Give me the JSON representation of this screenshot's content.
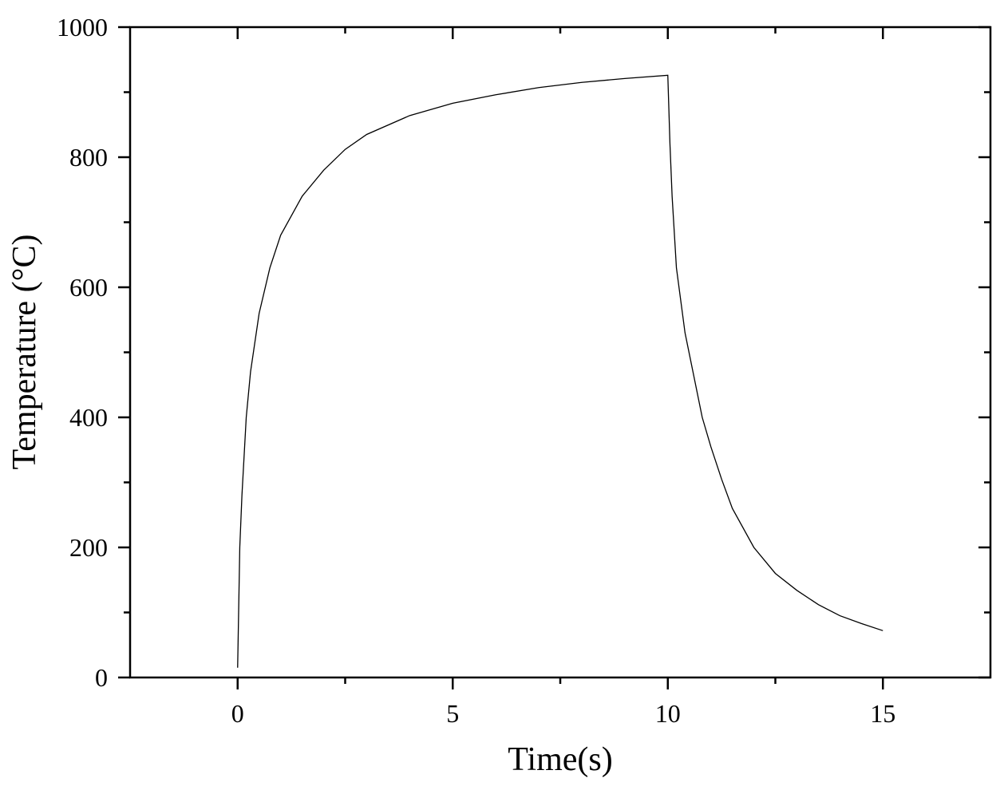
{
  "chart_data": {
    "type": "line",
    "x_label": "Time(s)",
    "y_label": "Temperature (°C)",
    "xlim": [
      -2.5,
      17.5
    ],
    "xticks": [
      0,
      5,
      10,
      15
    ],
    "ylim": [
      0,
      1000
    ],
    "yticks": [
      0,
      200,
      400,
      600,
      800,
      1000
    ],
    "grid": false,
    "color": "#000000",
    "x": [
      0,
      0.05,
      0.1,
      0.2,
      0.3,
      0.5,
      0.75,
      1,
      1.5,
      2,
      2.5,
      3,
      4,
      5,
      6,
      7,
      8,
      9,
      10,
      10.05,
      10.1,
      10.2,
      10.4,
      10.6,
      10.8,
      11,
      11.25,
      11.5,
      12,
      12.5,
      13,
      13.5,
      14,
      14.5,
      15
    ],
    "values": [
      15,
      200,
      280,
      400,
      470,
      560,
      630,
      680,
      740,
      780,
      812,
      835,
      864,
      883,
      896,
      907,
      915,
      921,
      926,
      820,
      740,
      630,
      530,
      465,
      400,
      355,
      305,
      260,
      200,
      160,
      134,
      112,
      95,
      83,
      72
    ]
  }
}
